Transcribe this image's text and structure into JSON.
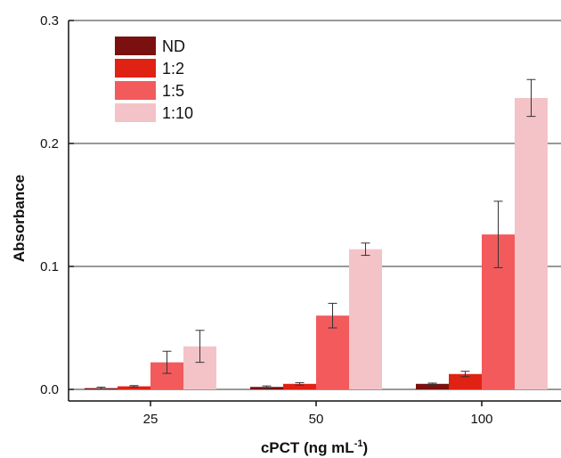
{
  "chart_data": {
    "type": "bar",
    "title": "",
    "xlabel": "cPCT (ng mL",
    "xlabel_sup": "-1",
    "xlabel_close": ")",
    "ylabel": "Absorbance",
    "categories": [
      "25",
      "50",
      "100"
    ],
    "ylim": [
      0,
      0.3
    ],
    "yticks": [
      "0.0",
      "0.1",
      "0.2",
      "0.3"
    ],
    "ytick_values": [
      0,
      0.1,
      0.2,
      0.3
    ],
    "grid": "horizontal",
    "legend_position": "top-left",
    "series": [
      {
        "name": "ND",
        "color": "#7a1010",
        "values": [
          0.001,
          0.002,
          0.0045
        ],
        "errors": [
          0.0008,
          0.0008,
          0.0006
        ]
      },
      {
        "name": "1:2",
        "color": "#e02214",
        "values": [
          0.0025,
          0.0045,
          0.0125
        ],
        "errors": [
          0.0006,
          0.001,
          0.0022
        ]
      },
      {
        "name": "1:5",
        "color": "#f35a5c",
        "values": [
          0.022,
          0.06,
          0.126
        ],
        "errors": [
          0.009,
          0.01,
          0.027
        ]
      },
      {
        "name": "1:10",
        "color": "#f4c3c7",
        "values": [
          0.035,
          0.114,
          0.237
        ],
        "errors": [
          0.013,
          0.005,
          0.015
        ]
      }
    ]
  }
}
